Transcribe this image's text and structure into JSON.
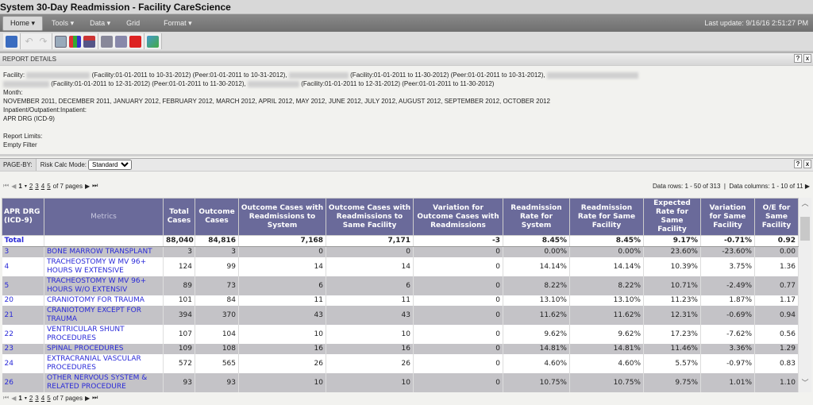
{
  "title": "System 30-Day Readmission - Facility CareScience",
  "menu": [
    "Home",
    "Tools",
    "Data",
    "Grid",
    "Format"
  ],
  "last_update": "Last update: 9/16/16 2:51:27 PM",
  "report_details": {
    "header": "REPORT DETAILS",
    "facility_label": "Facility:",
    "facility_parts": [
      "(Facility:01-01-2011 to 10-31-2012) (Peer:01-01-2011 to 10-31-2012),",
      "(Facility:01-01-2011 to 11-30-2012) (Peer:01-01-2011 to 10-31-2012),",
      "(Facility:01-01-2011 to 12-31-2012) (Peer:01-01-2011 to 11-30-2012),",
      "(Facility:01-01-2011 to 12-31-2012) (Peer:01-01-2011 to 11-30-2012)"
    ],
    "month_label": "Month:",
    "months": "NOVEMBER 2011, DECEMBER 2011, JANUARY 2012, FEBRUARY 2012, MARCH 2012, APRIL 2012, MAY 2012, JUNE 2012, JULY 2012, AUGUST 2012, SEPTEMBER 2012, OCTOBER 2012",
    "inpatient": "Inpatient/Outpatient:Inpatient:",
    "drg": "APR DRG (ICD-9)",
    "limits_label": "Report Limits:",
    "limits": "Empty Filter"
  },
  "page_by": {
    "label": "PAGE-BY:",
    "risk_label": "Risk Calc Mode:",
    "risk_value": "Standard"
  },
  "pager": {
    "current": "1",
    "pages": [
      "2",
      "3",
      "4",
      "5"
    ],
    "of": "of 7 pages"
  },
  "row_info": "Data rows: 1 - 50 of 313",
  "col_info": "Data columns: 1 - 10 of 11",
  "table": {
    "headers": [
      "APR DRG (ICD-9)",
      "Metrics",
      "Total Cases",
      "Outcome Cases",
      "Outcome Cases with Readmissions to System",
      "Outcome Cases with Readmissions to Same Facility",
      "Variation for Outcome Cases with Readmissions",
      "Readmission Rate for System",
      "Readmission Rate for Same Facility",
      "Expected Rate for Same Facility",
      "Variation for Same Facility",
      "O/E for Same Facility"
    ],
    "total": [
      "Total",
      "",
      "88,040",
      "84,816",
      "7,168",
      "7,171",
      "-3",
      "8.45%",
      "8.45%",
      "9.17%",
      "-0.71%",
      "0.92"
    ],
    "rows": [
      [
        "3",
        "BONE MARROW TRANSPLANT",
        "3",
        "3",
        "0",
        "0",
        "0",
        "0.00%",
        "0.00%",
        "23.60%",
        "-23.60%",
        "0.00"
      ],
      [
        "4",
        "TRACHEOSTOMY W MV 96+ HOURS W EXTENSIVE",
        "124",
        "99",
        "14",
        "14",
        "0",
        "14.14%",
        "14.14%",
        "10.39%",
        "3.75%",
        "1.36"
      ],
      [
        "5",
        "TRACHEOSTOMY W MV 96+ HOURS W/O EXTENSIV",
        "89",
        "73",
        "6",
        "6",
        "0",
        "8.22%",
        "8.22%",
        "10.71%",
        "-2.49%",
        "0.77"
      ],
      [
        "20",
        "CRANIOTOMY FOR TRAUMA",
        "101",
        "84",
        "11",
        "11",
        "0",
        "13.10%",
        "13.10%",
        "11.23%",
        "1.87%",
        "1.17"
      ],
      [
        "21",
        "CRANIOTOMY EXCEPT FOR TRAUMA",
        "394",
        "370",
        "43",
        "43",
        "0",
        "11.62%",
        "11.62%",
        "12.31%",
        "-0.69%",
        "0.94"
      ],
      [
        "22",
        "VENTRICULAR SHUNT PROCEDURES",
        "107",
        "104",
        "10",
        "10",
        "0",
        "9.62%",
        "9.62%",
        "17.23%",
        "-7.62%",
        "0.56"
      ],
      [
        "23",
        "SPINAL PROCEDURES",
        "109",
        "108",
        "16",
        "16",
        "0",
        "14.81%",
        "14.81%",
        "11.46%",
        "3.36%",
        "1.29"
      ],
      [
        "24",
        "EXTRACRANIAL VASCULAR PROCEDURES",
        "572",
        "565",
        "26",
        "26",
        "0",
        "4.60%",
        "4.60%",
        "5.57%",
        "-0.97%",
        "0.83"
      ],
      [
        "26",
        "OTHER NERVOUS SYSTEM & RELATED PROCEDURE",
        "93",
        "93",
        "10",
        "10",
        "0",
        "10.75%",
        "10.75%",
        "9.75%",
        "1.01%",
        "1.10"
      ]
    ]
  }
}
